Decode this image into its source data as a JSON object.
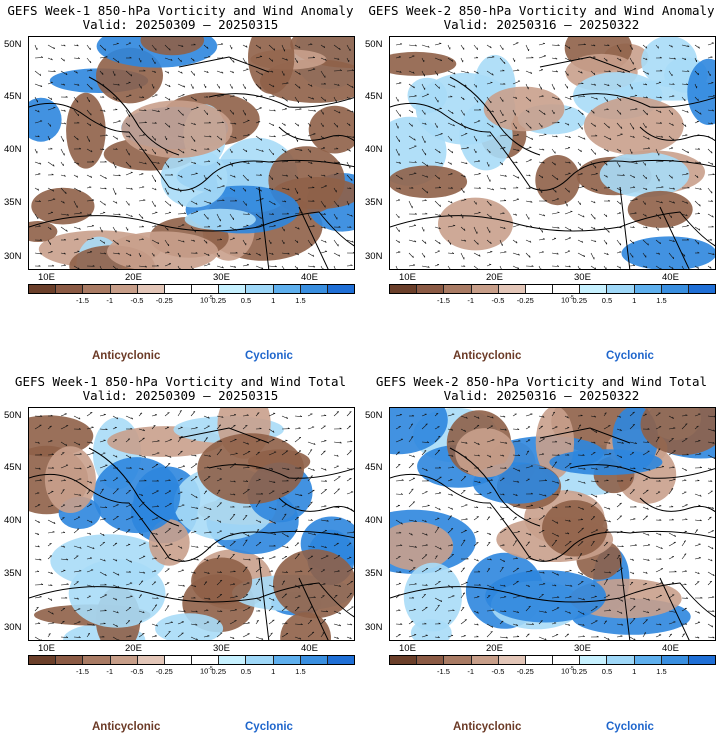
{
  "panels": [
    {
      "title": "GEFS Week-1 850-hPa Vorticity and Wind Anomaly",
      "valid": "Valid: 20250309 – 20250315"
    },
    {
      "title": "GEFS Week-2 850-hPa Vorticity and Wind Anomaly",
      "valid": "Valid: 20250316 – 20250322"
    },
    {
      "title": "GEFS Week-1 850-hPa Vorticity and Wind Total",
      "valid": "Valid: 20250309 – 20250315"
    },
    {
      "title": "GEFS Week-2 850-hPa Vorticity and Wind Total",
      "valid": "Valid: 20250316 – 20250322"
    }
  ],
  "lat_labels": [
    "50N",
    "45N",
    "40N",
    "35N",
    "30N"
  ],
  "lon_labels": [
    "10E",
    "20E",
    "30E",
    "40E"
  ],
  "colorbar": {
    "labels": [
      "-1.5",
      "-1",
      "-0.5",
      "-0.25",
      "0.25",
      "0.5",
      "1",
      "1.5"
    ],
    "unit": "10",
    "unit_exp": "-5",
    "colors": [
      "#6b3f2a",
      "#8b5a44",
      "#a97b64",
      "#c79e89",
      "#e3c6b8",
      "#ffffff",
      "#ffffff",
      "#c7f1ff",
      "#9fd8f8",
      "#5fb0ee",
      "#3a8fe0",
      "#1f6fd6"
    ]
  },
  "legend": {
    "anticyclonic": "Anticyclonic",
    "cyclonic": "Cyclonic"
  },
  "colors": {
    "anticyclonic_text": "#6b3a26",
    "cyclonic_text": "#1f66cc",
    "brown": "#8f6048",
    "light_brown": "#c9a08c",
    "blue": "#2e86de",
    "light_blue": "#a8dcf7"
  }
}
